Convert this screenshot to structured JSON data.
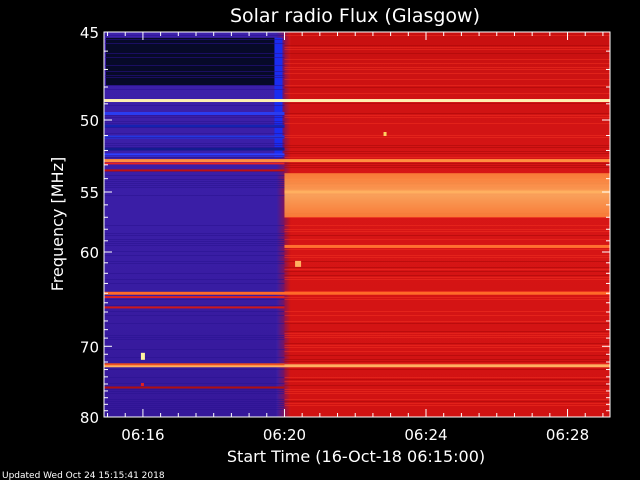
{
  "chart_data": {
    "type": "heatmap",
    "title": "Solar radio Flux (Glasgow)",
    "xlabel": "Start Time (16-Oct-18 06:15:00)",
    "ylabel": "Frequency [MHz]",
    "x_ticks": [
      "06:16",
      "06:20",
      "06:24",
      "06:28"
    ],
    "y_ticks": [
      "45",
      "50",
      "55",
      "60",
      "70",
      "80"
    ],
    "y_scale": "reciprocal",
    "y_tick_values": [
      45,
      50,
      55,
      60,
      70,
      80
    ],
    "x_range_minutes": [
      -0.1,
      14.2
    ],
    "y_range_mhz": [
      45,
      80
    ],
    "regions": [
      {
        "name": "before-06:20",
        "x_end_minutes": 5.0,
        "dominant_color": "#3a1ea8",
        "top_band_color": "#070a28"
      },
      {
        "name": "after-06:20",
        "x_start_minutes": 5.0,
        "dominant_color": "#d81414"
      }
    ],
    "bright_bands_mhz": [
      {
        "freq": 48.8,
        "color": "#fff0b0"
      },
      {
        "freq": 52.7,
        "color": "#ff9040"
      },
      {
        "freq": 55.0,
        "color": "#ffb060"
      },
      {
        "freq": 59.5,
        "color": "#ff7030"
      },
      {
        "freq": 64.0,
        "color": "#ff6a28"
      },
      {
        "freq": 72.5,
        "color": "#ffb060"
      }
    ]
  },
  "footer": {
    "updated": "Updated Wed Oct 24 15:15:41 2018"
  }
}
